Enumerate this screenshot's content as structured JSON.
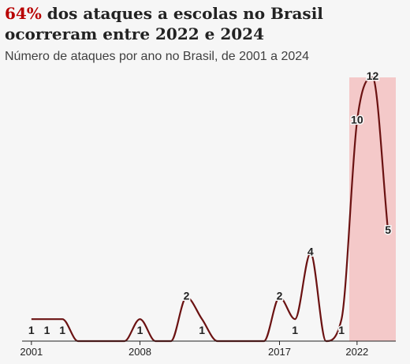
{
  "header": {
    "title_highlight": "64%",
    "title_rest": " dos ataques a escolas no Brasil ocorreram entre 2022 e 2024",
    "subtitle": "Número de ataques por ano no Brasil, de 2001 a 2024"
  },
  "colors": {
    "line": "#6b1212",
    "highlight_band": "#f4c9c9",
    "title_accent": "#b80000",
    "axis": "#222222"
  },
  "chart_data": {
    "type": "line",
    "x": [
      2001,
      2002,
      2003,
      2004,
      2005,
      2006,
      2007,
      2008,
      2009,
      2010,
      2011,
      2012,
      2013,
      2014,
      2015,
      2016,
      2017,
      2018,
      2019,
      2020,
      2021,
      2022,
      2023,
      2024
    ],
    "values": [
      1,
      1,
      1,
      0,
      0,
      0,
      0,
      1,
      0,
      0,
      2,
      1,
      0,
      0,
      0,
      0,
      2,
      1,
      4,
      0,
      1,
      10,
      12,
      5
    ],
    "labels": [
      {
        "year": 2001,
        "text": "1"
      },
      {
        "year": 2002,
        "text": "1"
      },
      {
        "year": 2003,
        "text": "1"
      },
      {
        "year": 2008,
        "text": "1"
      },
      {
        "year": 2011,
        "text": "2"
      },
      {
        "year": 2012,
        "text": "1"
      },
      {
        "year": 2017,
        "text": "2"
      },
      {
        "year": 2018,
        "text": "1"
      },
      {
        "year": 2019,
        "text": "4"
      },
      {
        "year": 2021,
        "text": "1"
      },
      {
        "year": 2022,
        "text": "10"
      },
      {
        "year": 2023,
        "text": "12"
      },
      {
        "year": 2024,
        "text": "5"
      }
    ],
    "xticks": [
      {
        "value": 2001,
        "label": "2001"
      },
      {
        "value": 2008,
        "label": "2008"
      },
      {
        "value": 2017,
        "label": "2017"
      },
      {
        "value": 2022,
        "label": "2022"
      }
    ],
    "highlight_range": [
      2021.5,
      2024.5
    ],
    "ylim": [
      0,
      12
    ],
    "xlim": [
      2000.5,
      2024.5
    ],
    "grid": false,
    "legend": "none"
  }
}
